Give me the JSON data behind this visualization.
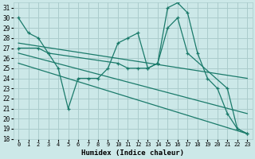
{
  "xlabel": "Humidex (Indice chaleur)",
  "bg_color": "#cce8e8",
  "grid_color": "#aacccc",
  "line_color": "#1a7a6a",
  "xlim": [
    -0.5,
    23.5
  ],
  "ylim": [
    18,
    31.5
  ],
  "yticks": [
    18,
    19,
    20,
    21,
    22,
    23,
    24,
    25,
    26,
    27,
    28,
    29,
    30,
    31
  ],
  "xticks": [
    0,
    1,
    2,
    3,
    4,
    5,
    6,
    7,
    8,
    9,
    10,
    11,
    12,
    13,
    14,
    15,
    16,
    17,
    18,
    19,
    20,
    21,
    22,
    23
  ],
  "line1_x": [
    0,
    1,
    2,
    3,
    4,
    5,
    6,
    7,
    8,
    9,
    10,
    11,
    12,
    13,
    14,
    15,
    16,
    17,
    21,
    22,
    23
  ],
  "line1_y": [
    30,
    28.5,
    28,
    26.5,
    25,
    21,
    24,
    24,
    24,
    25,
    27.5,
    28,
    28.5,
    25,
    25.5,
    29,
    30,
    26.5,
    23,
    19,
    18.5
  ],
  "line2_x": [
    0,
    2,
    3,
    10,
    11,
    12,
    13,
    14,
    15,
    16,
    17,
    18,
    19,
    20,
    21,
    22,
    23
  ],
  "line2_y": [
    27,
    27,
    26.5,
    25.5,
    25,
    25,
    25,
    25.5,
    31,
    31.5,
    30.5,
    26.5,
    24,
    23,
    20.5,
    19,
    18.5
  ],
  "line3_x": [
    0,
    23
  ],
  "line3_y": [
    27.5,
    24
  ],
  "line4_x": [
    0,
    23
  ],
  "line4_y": [
    26.5,
    20.5
  ],
  "line5_x": [
    0,
    23
  ],
  "line5_y": [
    25.5,
    18.5
  ]
}
